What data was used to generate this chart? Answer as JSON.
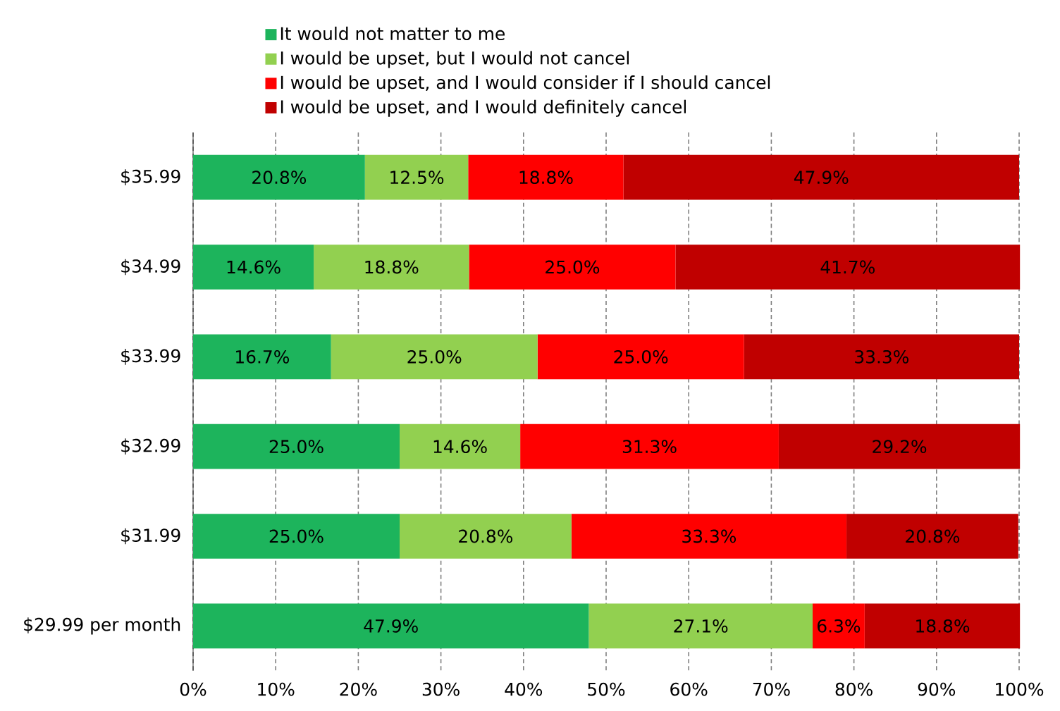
{
  "chart_data": {
    "type": "bar",
    "orientation": "horizontal",
    "stacked": true,
    "categories": [
      "$35.99",
      "$34.99",
      "$33.99",
      "$32.99",
      "$31.99",
      "$29.99 per month"
    ],
    "series": [
      {
        "name": "It would not matter to me",
        "color": "#1db45c",
        "values": [
          20.8,
          14.6,
          16.7,
          25.0,
          25.0,
          47.9
        ],
        "value_labels": [
          "20.8%",
          "14.6%",
          "16.7%",
          "25.0%",
          "25.0%",
          "47.9%"
        ]
      },
      {
        "name": "I would be upset, but I would not cancel",
        "color": "#92d050",
        "values": [
          12.5,
          18.8,
          25.0,
          14.6,
          20.8,
          27.1
        ],
        "value_labels": [
          "12.5%",
          "18.8%",
          "25.0%",
          "14.6%",
          "20.8%",
          "27.1%"
        ]
      },
      {
        "name": "I would be upset, and I would consider if I should cancel",
        "color": "#ff0000",
        "values": [
          18.8,
          25.0,
          25.0,
          31.3,
          33.3,
          6.3
        ],
        "value_labels": [
          "18.8%",
          "25.0%",
          "25.0%",
          "31.3%",
          "33.3%",
          "6.3%"
        ]
      },
      {
        "name": "I would be upset, and I would definitely cancel",
        "color": "#c00000",
        "values": [
          47.9,
          41.7,
          33.3,
          29.2,
          20.8,
          18.8
        ],
        "value_labels": [
          "47.9%",
          "41.7%",
          "33.3%",
          "29.2%",
          "20.8%",
          "18.8%"
        ]
      }
    ],
    "xlim": [
      0,
      100
    ],
    "xticks": [
      {
        "value": 0,
        "label": "0%"
      },
      {
        "value": 10,
        "label": "10%"
      },
      {
        "value": 20,
        "label": "20%"
      },
      {
        "value": 30,
        "label": "30%"
      },
      {
        "value": 40,
        "label": "40%"
      },
      {
        "value": 50,
        "label": "50%"
      },
      {
        "value": 60,
        "label": "60%"
      },
      {
        "value": 70,
        "label": "70%"
      },
      {
        "value": 80,
        "label": "80%"
      },
      {
        "value": 90,
        "label": "90%"
      },
      {
        "value": 100,
        "label": "100%"
      }
    ],
    "grid": "x",
    "legend": "top"
  }
}
